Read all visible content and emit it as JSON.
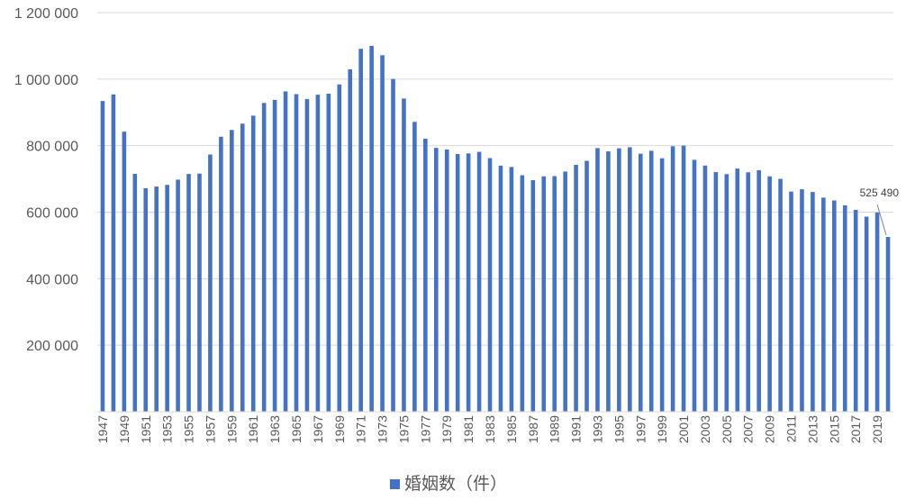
{
  "chart_data": {
    "type": "bar",
    "title": "",
    "xlabel": "",
    "ylabel": "",
    "ylim": [
      0,
      1200000
    ],
    "yticks": [
      0,
      200000,
      400000,
      600000,
      800000,
      1000000,
      1200000
    ],
    "ytick_labels": [
      "",
      "200 000",
      "400 000",
      "600 000",
      "800 000",
      "1 000 000",
      "1 200 000"
    ],
    "grid": true,
    "legend": "bottom",
    "color": "#4472C4",
    "categories": [
      "1947",
      "1948",
      "1949",
      "1950",
      "1951",
      "1952",
      "1953",
      "1954",
      "1955",
      "1956",
      "1957",
      "1958",
      "1959",
      "1960",
      "1961",
      "1962",
      "1963",
      "1964",
      "1965",
      "1966",
      "1967",
      "1968",
      "1969",
      "1970",
      "1971",
      "1972",
      "1973",
      "1974",
      "1975",
      "1976",
      "1977",
      "1978",
      "1979",
      "1980",
      "1981",
      "1982",
      "1983",
      "1984",
      "1985",
      "1986",
      "1987",
      "1988",
      "1989",
      "1990",
      "1991",
      "1992",
      "1993",
      "1994",
      "1995",
      "1996",
      "1997",
      "1998",
      "1999",
      "2000",
      "2001",
      "2002",
      "2003",
      "2004",
      "2005",
      "2006",
      "2007",
      "2008",
      "2009",
      "2010",
      "2011",
      "2012",
      "2013",
      "2014",
      "2015",
      "2016",
      "2017",
      "2018",
      "2019",
      "2020"
    ],
    "xtick_labels": [
      "1947",
      "1949",
      "1951",
      "1953",
      "1955",
      "1957",
      "1959",
      "1961",
      "1963",
      "1965",
      "1967",
      "1969",
      "1971",
      "1973",
      "1975",
      "1977",
      "1979",
      "1981",
      "1983",
      "1985",
      "1987",
      "1989",
      "1991",
      "1993",
      "1995",
      "1997",
      "1999",
      "2001",
      "2003",
      "2005",
      "2007",
      "2009",
      "2011",
      "2013",
      "2015",
      "2017",
      "2019"
    ],
    "series": [
      {
        "name": "婚姻数（件）",
        "values": [
          934170,
          953999,
          842170,
          715081,
          671905,
          676995,
          682077,
          697809,
          714861,
          715934,
          773362,
          826902,
          847135,
          866115,
          890158,
          928341,
          937516,
          963130,
          954852,
          940120,
          953096,
          956312,
          984142,
          1029405,
          1091229,
          1099984,
          1071923,
          1000455,
          941628,
          871543,
          821029,
          793257,
          788505,
          774702,
          776531,
          781252,
          762552,
          739991,
          735850,
          710962,
          696173,
          707716,
          708316,
          722138,
          742264,
          754441,
          792658,
          782738,
          791888,
          795080,
          775651,
          784595,
          762028,
          798138,
          799999,
          757331,
          740191,
          720417,
          714265,
          730971,
          719822,
          726106,
          707734,
          700214,
          661895,
          668869,
          660613,
          643749,
          635156,
          620531,
          606866,
          586481,
          599007,
          525490
        ]
      }
    ],
    "annotations": [
      {
        "category": "2020",
        "text": "525 490"
      }
    ]
  }
}
